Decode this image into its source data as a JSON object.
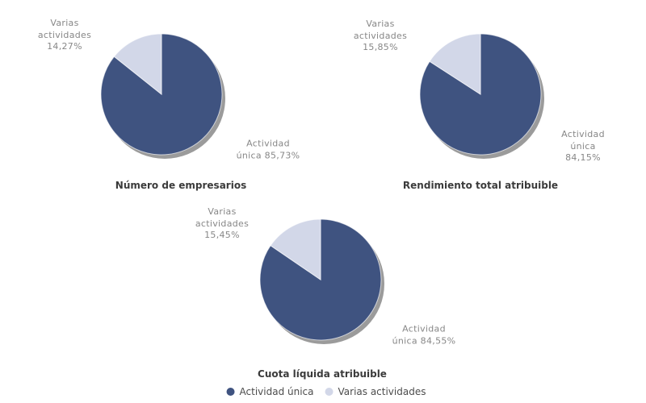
{
  "page": {
    "background": "#ffffff"
  },
  "charts_common": {
    "slice_colors": [
      "#3F5380",
      "#D2D7E8"
    ],
    "shadow_color": "#9B9B9B",
    "label_color": "#878787",
    "title_color": "#3B3B3B"
  },
  "chart_data": [
    {
      "type": "pie",
      "title": "Número de empresarios",
      "categories": [
        "Actividad única",
        "Varias actividades"
      ],
      "values": [
        85.73,
        14.27
      ],
      "colors": [
        "#3F5380",
        "#D2D7E8"
      ],
      "slice_label_main": "Actividad\núnica 85,73%",
      "slice_label_secondary": "Varias\nactividades\n14,27%"
    },
    {
      "type": "pie",
      "title": "Rendimiento total atribuible",
      "categories": [
        "Actividad única",
        "Varias actividades"
      ],
      "values": [
        84.15,
        15.85
      ],
      "colors": [
        "#3F5380",
        "#D2D7E8"
      ],
      "slice_label_main": "Actividad\núnica 84,15%",
      "slice_label_secondary": "Varias\nactividades\n15,85%"
    },
    {
      "type": "pie",
      "title": "Cuota líquida atribuible",
      "categories": [
        "Actividad única",
        "Varias actividades"
      ],
      "values": [
        84.55,
        15.45
      ],
      "colors": [
        "#3F5380",
        "#D2D7E8"
      ],
      "slice_label_main": "Actividad\núnica 84,55%",
      "slice_label_secondary": "Varias\nactividades\n15,45%"
    }
  ],
  "legend": {
    "position": "bottom-center",
    "items": [
      {
        "label": "Actividad única",
        "color": "#3F5380"
      },
      {
        "label": "Varias actividades",
        "color": "#D2D7E8"
      }
    ]
  }
}
